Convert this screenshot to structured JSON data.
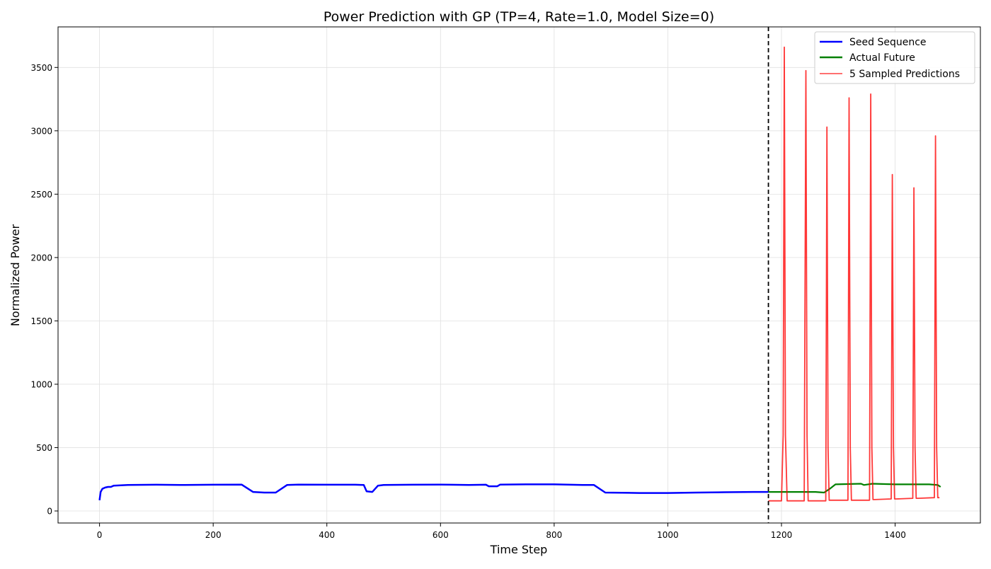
{
  "chart_data": {
    "type": "line",
    "title": "Power Prediction with GP (TP=4, Rate=1.0, Model Size=0)",
    "xlabel": "Time Step",
    "ylabel": "Normalized Power",
    "xlim": [
      -73,
      1550
    ],
    "ylim": [
      -95,
      3820
    ],
    "x_ticks": [
      0,
      200,
      400,
      600,
      800,
      1000,
      1200,
      1400
    ],
    "y_ticks": [
      0,
      500,
      1000,
      1500,
      2000,
      2500,
      3000,
      3500
    ],
    "grid": true,
    "legend_position": "top-right",
    "vertical_marker_x": 1177,
    "series": [
      {
        "name": "Seed Sequence",
        "color": "#0000ff",
        "x": [
          0,
          2,
          5,
          10,
          15,
          20,
          25,
          50,
          100,
          150,
          200,
          250,
          270,
          290,
          310,
          330,
          350,
          400,
          450,
          465,
          470,
          480,
          490,
          500,
          550,
          600,
          650,
          680,
          685,
          700,
          705,
          750,
          800,
          850,
          870,
          890,
          950,
          1000,
          1050,
          1100,
          1150,
          1177
        ],
        "y": [
          85,
          150,
          175,
          185,
          190,
          190,
          200,
          205,
          207,
          205,
          207,
          208,
          150,
          145,
          145,
          205,
          208,
          207,
          207,
          205,
          155,
          150,
          200,
          205,
          207,
          208,
          205,
          207,
          195,
          195,
          208,
          210,
          210,
          205,
          205,
          145,
          142,
          142,
          145,
          148,
          150,
          150
        ]
      },
      {
        "name": "Actual Future",
        "color": "#008000",
        "x": [
          1177,
          1200,
          1260,
          1275,
          1285,
          1295,
          1340,
          1345,
          1360,
          1400,
          1460,
          1475,
          1480
        ],
        "y": [
          150,
          150,
          150,
          145,
          175,
          210,
          215,
          205,
          215,
          210,
          210,
          205,
          190
        ]
      },
      {
        "name": "5 Sampled Predictions",
        "color": "#ff0000",
        "x": [
          1177,
          1200,
          1203,
          1205,
          1207,
          1210,
          1240,
          1243,
          1245,
          1247,
          1250,
          1278,
          1280,
          1282,
          1284,
          1287,
          1317,
          1319,
          1321,
          1323,
          1326,
          1355,
          1357,
          1359,
          1361,
          1364,
          1393,
          1395,
          1397,
          1399,
          1402,
          1431,
          1433,
          1435,
          1437,
          1440,
          1469,
          1471,
          1473,
          1475,
          1478
        ],
        "y": [
          80,
          80,
          600,
          3660,
          600,
          80,
          80,
          3475,
          600,
          80,
          80,
          80,
          3030,
          500,
          85,
          85,
          85,
          3260,
          500,
          85,
          85,
          85,
          3290,
          500,
          90,
          90,
          95,
          2655,
          500,
          95,
          95,
          100,
          2550,
          500,
          100,
          100,
          105,
          2960,
          500,
          105,
          105
        ]
      }
    ]
  }
}
